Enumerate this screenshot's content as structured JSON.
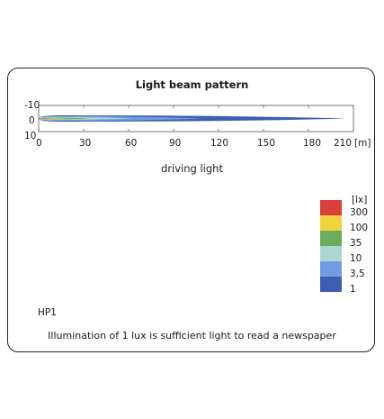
{
  "chart_data": {
    "type": "heatmap",
    "title": "Light beam pattern",
    "x_unit": "[m]",
    "x_ticks": [
      "0",
      "30",
      "60",
      "90",
      "120",
      "150",
      "180",
      "210"
    ],
    "y_ticks": [
      "-10",
      "0",
      "10"
    ],
    "xlim": [
      0,
      210
    ],
    "ylim": [
      -10,
      10
    ],
    "beam_type": "driving light",
    "legend": {
      "unit": "[lx]",
      "levels": [
        {
          "label": "300",
          "color": "#d9403a"
        },
        {
          "label": "100",
          "color": "#f2d43f"
        },
        {
          "label": "35",
          "color": "#6bad5e"
        },
        {
          "label": "10",
          "color": "#acd6d2"
        },
        {
          "label": "3,5",
          "color": "#6f9de0"
        },
        {
          "label": "1",
          "color": "#3d5eb3"
        }
      ]
    },
    "zones": [
      {
        "lux": 1,
        "reach": 205,
        "half_width": 2.3,
        "color": "#3d5eb3"
      },
      {
        "lux": 3.5,
        "reach": 110,
        "half_width": 1.7,
        "color": "#6f9de0"
      },
      {
        "lux": 10,
        "reach": 62,
        "half_width": 1.1,
        "color": "#acd6d2"
      },
      {
        "lux": 35,
        "reach": 35,
        "half_width": 0.6,
        "color": "#6bad5e"
      },
      {
        "lux": 100,
        "reach": 20,
        "half_width": 0.35,
        "color": "#f2d43f"
      },
      {
        "lux": 300,
        "reach": 11,
        "half_width": 0.18,
        "color": "#d9403a"
      }
    ]
  },
  "texts": {
    "model": "HP1",
    "note": "Illumination of 1 lux is sufficient light to read a newspaper"
  }
}
